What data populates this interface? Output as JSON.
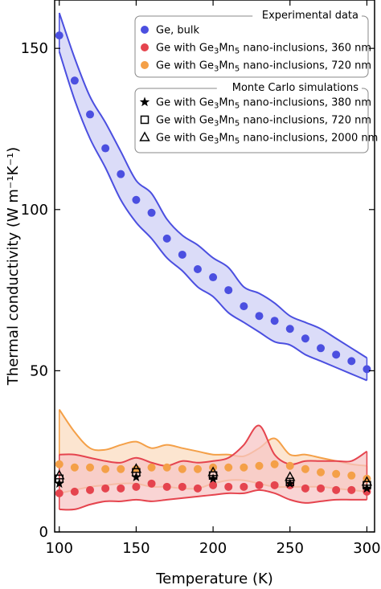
{
  "chart_data": {
    "type": "scatter",
    "xlabel": "Temperature (K)",
    "ylabel": "Thermal conductivity (W m⁻¹K⁻¹)",
    "xlim": [
      97,
      305
    ],
    "ylim": [
      0,
      165
    ],
    "xticks": [
      100,
      150,
      200,
      250,
      300
    ],
    "yticks": [
      0,
      50,
      100,
      150
    ],
    "legend_placement": "top-right",
    "legend_groups": [
      {
        "title": "Experimental data",
        "entries": [
          {
            "label": "Ge, bulk",
            "series": "ge_bulk"
          },
          {
            "label": "Ge with Ge3Mn5 nano-inclusions, 360 nm",
            "series": "ge_360"
          },
          {
            "label": "Ge with Ge3Mn5 nano-inclusions, 720 nm",
            "series": "ge_720"
          }
        ]
      },
      {
        "title": "Monte Carlo simulations",
        "entries": [
          {
            "label": "Ge with Ge3Mn5 nano-inclusions, 380 nm",
            "series": "mc_380"
          },
          {
            "label": "Ge with Ge3Mn5 nano-inclusions, 720 nm",
            "series": "mc_720"
          },
          {
            "label": "Ge with Ge3Mn5 nano-inclusions, 2000 nm",
            "series": "mc_2000"
          }
        ]
      }
    ],
    "series": [
      {
        "key": "ge_bulk",
        "marker": "circle",
        "color": "#4b4fe0",
        "band_fill": "#cfd0f5",
        "x": [
          100,
          110,
          120,
          130,
          140,
          150,
          160,
          170,
          180,
          190,
          200,
          210,
          220,
          230,
          240,
          250,
          260,
          270,
          280,
          290,
          300
        ],
        "y": [
          154,
          140,
          129.5,
          119,
          111,
          103,
          99,
          91,
          86,
          81.5,
          79,
          75,
          70,
          67,
          65.5,
          63,
          60,
          57,
          55,
          53,
          50.5
        ],
        "band_upper": [
          161,
          147,
          135,
          127,
          118,
          109,
          105,
          97,
          92,
          89,
          85,
          82,
          76,
          74,
          71,
          67,
          65,
          63,
          60,
          57,
          54
        ],
        "band_lower": [
          149,
          134,
          122,
          113,
          103,
          96,
          91,
          85,
          81,
          76,
          73,
          68,
          65,
          62,
          59,
          58,
          55,
          53,
          51,
          49,
          47
        ]
      },
      {
        "key": "ge_360",
        "marker": "circle",
        "color": "#e5444e",
        "band_fill": "#f7c6c6",
        "x": [
          100,
          110,
          120,
          130,
          140,
          150,
          160,
          170,
          180,
          190,
          200,
          210,
          220,
          230,
          240,
          250,
          260,
          270,
          280,
          290,
          300
        ],
        "y": [
          12,
          12.5,
          13,
          13.5,
          13.5,
          14,
          15,
          14,
          14,
          13.5,
          14.5,
          14,
          14,
          14.5,
          14.5,
          14.5,
          13.5,
          13.5,
          13,
          13,
          12.5
        ],
        "band_upper": [
          24,
          24,
          23,
          22,
          21.5,
          23,
          21.5,
          20.5,
          22,
          21.5,
          22,
          23,
          27,
          33,
          24,
          21,
          22,
          22,
          22,
          22,
          25
        ],
        "band_lower": [
          7,
          7,
          8.5,
          9.5,
          9.5,
          10,
          9.5,
          10,
          10.5,
          11,
          11.5,
          12,
          12,
          13,
          12,
          10,
          9,
          9.5,
          10,
          10,
          10
        ]
      },
      {
        "key": "ge_720",
        "marker": "circle",
        "color": "#f4a048",
        "band_fill": "#fbdcc0",
        "x": [
          100,
          110,
          120,
          130,
          140,
          150,
          160,
          170,
          180,
          190,
          200,
          210,
          220,
          230,
          240,
          250,
          260,
          270,
          280,
          290,
          300
        ],
        "y": [
          21,
          20,
          20,
          19.5,
          19.5,
          19.5,
          20,
          20,
          19.5,
          19.5,
          20,
          20,
          20,
          20.5,
          21,
          20.5,
          19.5,
          18.5,
          18,
          17.5,
          16.5
        ],
        "band_upper": [
          38,
          31,
          26,
          25.5,
          27,
          28,
          26,
          27,
          26,
          25,
          24,
          24,
          23.5,
          26,
          29,
          24,
          24,
          23,
          22,
          21,
          20.5
        ],
        "band_lower": [
          12,
          13,
          14,
          14.5,
          15,
          15,
          14,
          14,
          13.5,
          13.5,
          15,
          16,
          16,
          15,
          14,
          14,
          14,
          14,
          13.5,
          13,
          12.5
        ]
      },
      {
        "key": "mc_380",
        "marker": "star",
        "color": "#000000",
        "x": [
          100,
          150,
          200,
          250,
          300
        ],
        "y": [
          15,
          17,
          16.5,
          15,
          13.5
        ]
      },
      {
        "key": "mc_720",
        "marker": "square",
        "color": "#000000",
        "x": [
          100,
          150,
          200,
          250,
          300
        ],
        "y": [
          16.5,
          18.5,
          17.5,
          15.5,
          14.5
        ]
      },
      {
        "key": "mc_2000",
        "marker": "triangle",
        "color": "#000000",
        "x": [
          100,
          150,
          200,
          250,
          300
        ],
        "y": [
          17.5,
          19.5,
          18.5,
          17,
          15.5
        ]
      }
    ]
  }
}
